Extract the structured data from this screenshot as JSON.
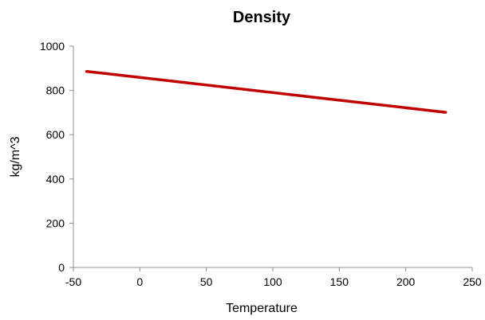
{
  "chart_data": {
    "type": "line",
    "title": "Density",
    "xlabel": "Temperature",
    "ylabel": "kg/m^3",
    "xlim": [
      -50,
      250
    ],
    "ylim": [
      0,
      1000
    ],
    "x_ticks": [
      "-50",
      "0",
      "50",
      "100",
      "150",
      "200",
      "250"
    ],
    "y_ticks": [
      "0",
      "200",
      "400",
      "600",
      "800",
      "1000"
    ],
    "grid": false,
    "legend": "none",
    "series": [
      {
        "color": "#c00000",
        "x": [
          -40,
          230
        ],
        "y": [
          886,
          701
        ]
      }
    ]
  }
}
